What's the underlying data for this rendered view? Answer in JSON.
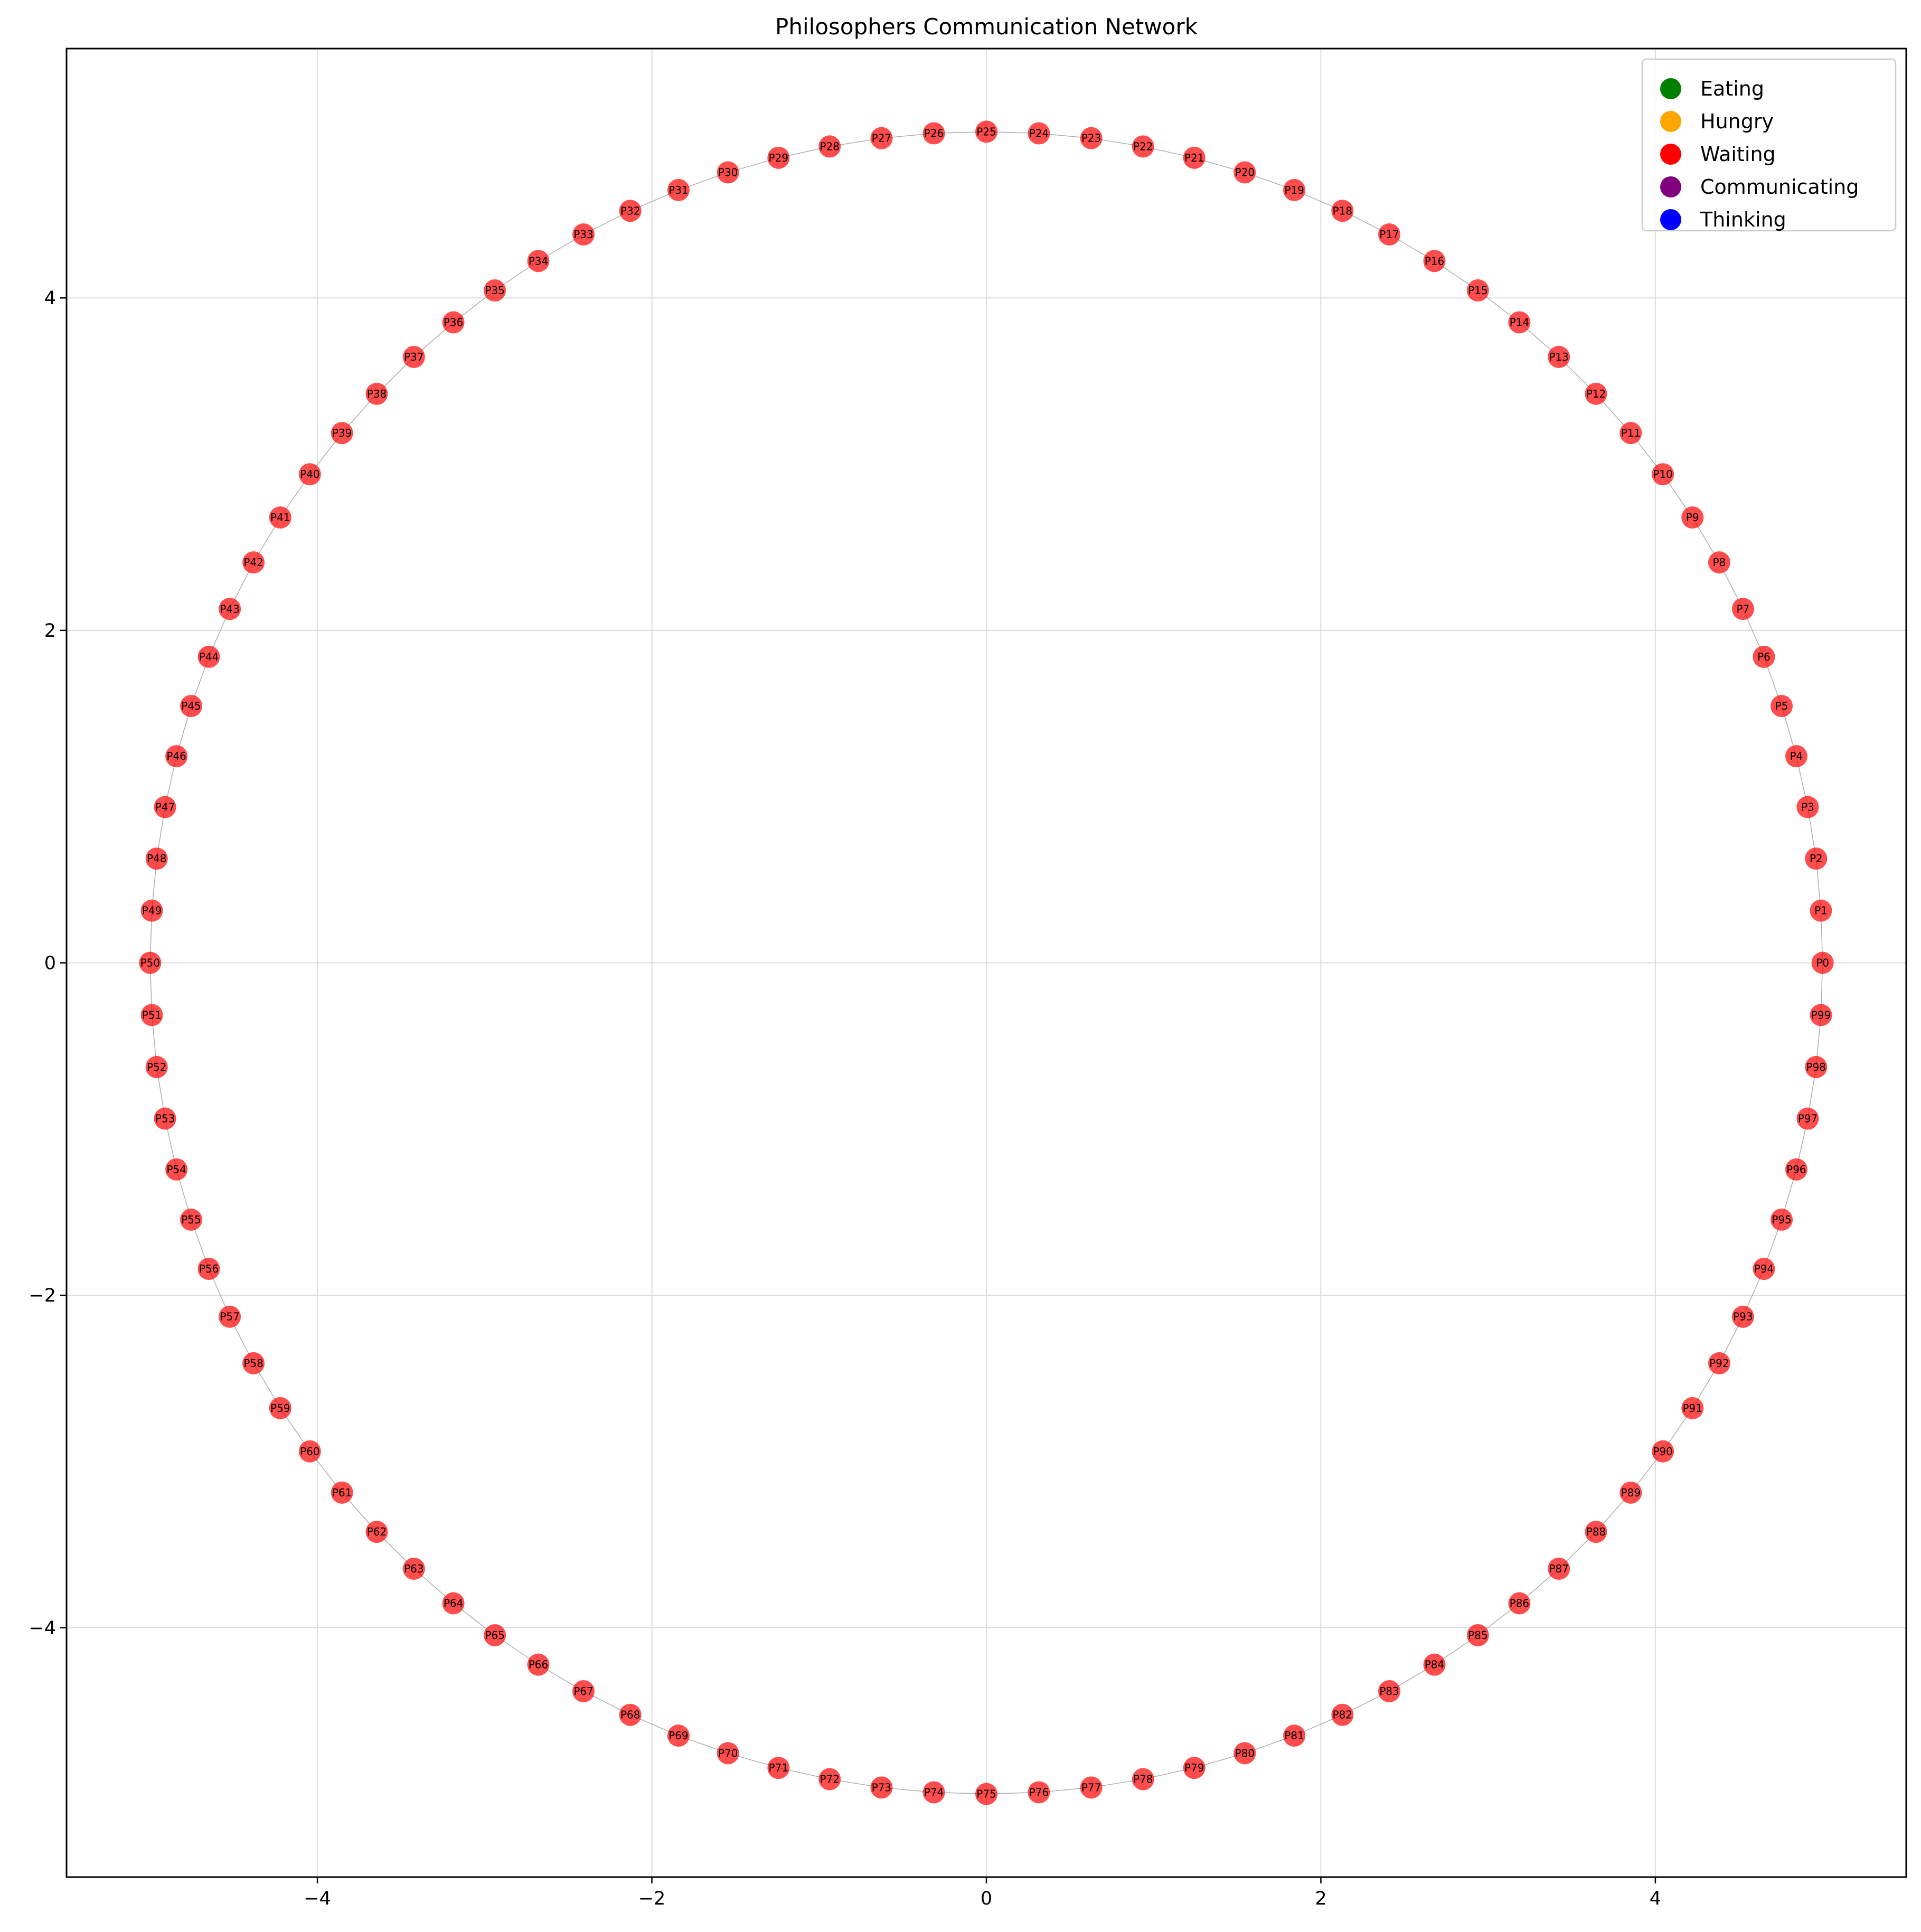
{
  "chart_data": {
    "type": "scatter",
    "title": "Philosophers Communication Network",
    "xlabel": "",
    "ylabel": "",
    "xlim": [
      -5.5,
      5.5
    ],
    "ylim": [
      -5.5,
      5.5
    ],
    "x_ticks": [
      -4,
      -2,
      0,
      2,
      4
    ],
    "y_ticks": [
      -4,
      -2,
      0,
      2,
      4
    ],
    "x_tick_labels": [
      "−4",
      "−2",
      "0",
      "2",
      "4"
    ],
    "y_tick_labels": [
      "−4",
      "−2",
      "0",
      "2",
      "4"
    ],
    "grid": true,
    "legend_position": "top-right",
    "legend": [
      {
        "label": "Eating",
        "color": "#008000"
      },
      {
        "label": "Hungry",
        "color": "#FFA500"
      },
      {
        "label": "Waiting",
        "color": "#FF0000"
      },
      {
        "label": "Communicating",
        "color": "#800080"
      },
      {
        "label": "Thinking",
        "color": "#0000FF"
      }
    ],
    "node_state": "Waiting",
    "node_color": "#FF0000",
    "edge_color": "#999999",
    "nodes": [
      {
        "label": "P0",
        "x": 5.0,
        "y": 0.0
      },
      {
        "label": "P1",
        "x": 4.99,
        "y": 0.314
      },
      {
        "label": "P2",
        "x": 4.961,
        "y": 0.627
      },
      {
        "label": "P3",
        "x": 4.911,
        "y": 0.937
      },
      {
        "label": "P4",
        "x": 4.843,
        "y": 1.243
      },
      {
        "label": "P5",
        "x": 4.755,
        "y": 1.545
      },
      {
        "label": "P6",
        "x": 4.649,
        "y": 1.841
      },
      {
        "label": "P7",
        "x": 4.524,
        "y": 2.129
      },
      {
        "label": "P8",
        "x": 4.382,
        "y": 2.409
      },
      {
        "label": "P9",
        "x": 4.222,
        "y": 2.679
      },
      {
        "label": "P10",
        "x": 4.045,
        "y": 2.939
      },
      {
        "label": "P11",
        "x": 3.853,
        "y": 3.187
      },
      {
        "label": "P12",
        "x": 3.645,
        "y": 3.423
      },
      {
        "label": "P13",
        "x": 3.423,
        "y": 3.645
      },
      {
        "label": "P14",
        "x": 3.187,
        "y": 3.853
      },
      {
        "label": "P15",
        "x": 2.939,
        "y": 4.045
      },
      {
        "label": "P16",
        "x": 2.679,
        "y": 4.222
      },
      {
        "label": "P17",
        "x": 2.409,
        "y": 4.382
      },
      {
        "label": "P18",
        "x": 2.129,
        "y": 4.524
      },
      {
        "label": "P19",
        "x": 1.841,
        "y": 4.649
      },
      {
        "label": "P20",
        "x": 1.545,
        "y": 4.755
      },
      {
        "label": "P21",
        "x": 1.243,
        "y": 4.843
      },
      {
        "label": "P22",
        "x": 0.937,
        "y": 4.911
      },
      {
        "label": "P23",
        "x": 0.627,
        "y": 4.961
      },
      {
        "label": "P24",
        "x": 0.314,
        "y": 4.99
      },
      {
        "label": "P25",
        "x": 0.0,
        "y": 5.0
      },
      {
        "label": "P26",
        "x": -0.314,
        "y": 4.99
      },
      {
        "label": "P27",
        "x": -0.627,
        "y": 4.961
      },
      {
        "label": "P28",
        "x": -0.937,
        "y": 4.911
      },
      {
        "label": "P29",
        "x": -1.243,
        "y": 4.843
      },
      {
        "label": "P30",
        "x": -1.545,
        "y": 4.755
      },
      {
        "label": "P31",
        "x": -1.841,
        "y": 4.649
      },
      {
        "label": "P32",
        "x": -2.129,
        "y": 4.524
      },
      {
        "label": "P33",
        "x": -2.409,
        "y": 4.382
      },
      {
        "label": "P34",
        "x": -2.679,
        "y": 4.222
      },
      {
        "label": "P35",
        "x": -2.939,
        "y": 4.045
      },
      {
        "label": "P36",
        "x": -3.187,
        "y": 3.853
      },
      {
        "label": "P37",
        "x": -3.423,
        "y": 3.645
      },
      {
        "label": "P38",
        "x": -3.645,
        "y": 3.423
      },
      {
        "label": "P39",
        "x": -3.853,
        "y": 3.187
      },
      {
        "label": "P40",
        "x": -4.045,
        "y": 2.939
      },
      {
        "label": "P41",
        "x": -4.222,
        "y": 2.679
      },
      {
        "label": "P42",
        "x": -4.382,
        "y": 2.409
      },
      {
        "label": "P43",
        "x": -4.524,
        "y": 2.129
      },
      {
        "label": "P44",
        "x": -4.649,
        "y": 1.841
      },
      {
        "label": "P45",
        "x": -4.755,
        "y": 1.545
      },
      {
        "label": "P46",
        "x": -4.843,
        "y": 1.243
      },
      {
        "label": "P47",
        "x": -4.911,
        "y": 0.937
      },
      {
        "label": "P48",
        "x": -4.961,
        "y": 0.627
      },
      {
        "label": "P49",
        "x": -4.99,
        "y": 0.314
      },
      {
        "label": "P50",
        "x": -5.0,
        "y": 0.0
      },
      {
        "label": "P51",
        "x": -4.99,
        "y": -0.314
      },
      {
        "label": "P52",
        "x": -4.961,
        "y": -0.627
      },
      {
        "label": "P53",
        "x": -4.911,
        "y": -0.937
      },
      {
        "label": "P54",
        "x": -4.843,
        "y": -1.243
      },
      {
        "label": "P55",
        "x": -4.755,
        "y": -1.545
      },
      {
        "label": "P56",
        "x": -4.649,
        "y": -1.841
      },
      {
        "label": "P57",
        "x": -4.524,
        "y": -2.129
      },
      {
        "label": "P58",
        "x": -4.382,
        "y": -2.409
      },
      {
        "label": "P59",
        "x": -4.222,
        "y": -2.679
      },
      {
        "label": "P60",
        "x": -4.045,
        "y": -2.939
      },
      {
        "label": "P61",
        "x": -3.853,
        "y": -3.187
      },
      {
        "label": "P62",
        "x": -3.645,
        "y": -3.423
      },
      {
        "label": "P63",
        "x": -3.423,
        "y": -3.645
      },
      {
        "label": "P64",
        "x": -3.187,
        "y": -3.853
      },
      {
        "label": "P65",
        "x": -2.939,
        "y": -4.045
      },
      {
        "label": "P66",
        "x": -2.679,
        "y": -4.222
      },
      {
        "label": "P67",
        "x": -2.409,
        "y": -4.382
      },
      {
        "label": "P68",
        "x": -2.129,
        "y": -4.524
      },
      {
        "label": "P69",
        "x": -1.841,
        "y": -4.649
      },
      {
        "label": "P70",
        "x": -1.545,
        "y": -4.755
      },
      {
        "label": "P71",
        "x": -1.243,
        "y": -4.843
      },
      {
        "label": "P72",
        "x": -0.937,
        "y": -4.911
      },
      {
        "label": "P73",
        "x": -0.627,
        "y": -4.961
      },
      {
        "label": "P74",
        "x": -0.314,
        "y": -4.99
      },
      {
        "label": "P75",
        "x": 0.0,
        "y": -5.0
      },
      {
        "label": "P76",
        "x": 0.314,
        "y": -4.99
      },
      {
        "label": "P77",
        "x": 0.627,
        "y": -4.961
      },
      {
        "label": "P78",
        "x": 0.937,
        "y": -4.911
      },
      {
        "label": "P79",
        "x": 1.243,
        "y": -4.843
      },
      {
        "label": "P80",
        "x": 1.545,
        "y": -4.755
      },
      {
        "label": "P81",
        "x": 1.841,
        "y": -4.649
      },
      {
        "label": "P82",
        "x": 2.129,
        "y": -4.524
      },
      {
        "label": "P83",
        "x": 2.409,
        "y": -4.382
      },
      {
        "label": "P84",
        "x": 2.679,
        "y": -4.222
      },
      {
        "label": "P85",
        "x": 2.939,
        "y": -4.045
      },
      {
        "label": "P86",
        "x": 3.187,
        "y": -3.853
      },
      {
        "label": "P87",
        "x": 3.423,
        "y": -3.645
      },
      {
        "label": "P88",
        "x": 3.645,
        "y": -3.423
      },
      {
        "label": "P89",
        "x": 3.853,
        "y": -3.187
      },
      {
        "label": "P90",
        "x": 4.045,
        "y": -2.939
      },
      {
        "label": "P91",
        "x": 4.222,
        "y": -2.679
      },
      {
        "label": "P92",
        "x": 4.382,
        "y": -2.409
      },
      {
        "label": "P93",
        "x": 4.524,
        "y": -2.129
      },
      {
        "label": "P94",
        "x": 4.649,
        "y": -1.841
      },
      {
        "label": "P95",
        "x": 4.755,
        "y": -1.545
      },
      {
        "label": "P96",
        "x": 4.843,
        "y": -1.243
      },
      {
        "label": "P97",
        "x": 4.911,
        "y": -0.937
      },
      {
        "label": "P98",
        "x": 4.961,
        "y": -0.627
      },
      {
        "label": "P99",
        "x": 4.99,
        "y": -0.314
      }
    ],
    "edges": "ring: each node P(i) connected to P(i+1), P99 connected to P0"
  }
}
